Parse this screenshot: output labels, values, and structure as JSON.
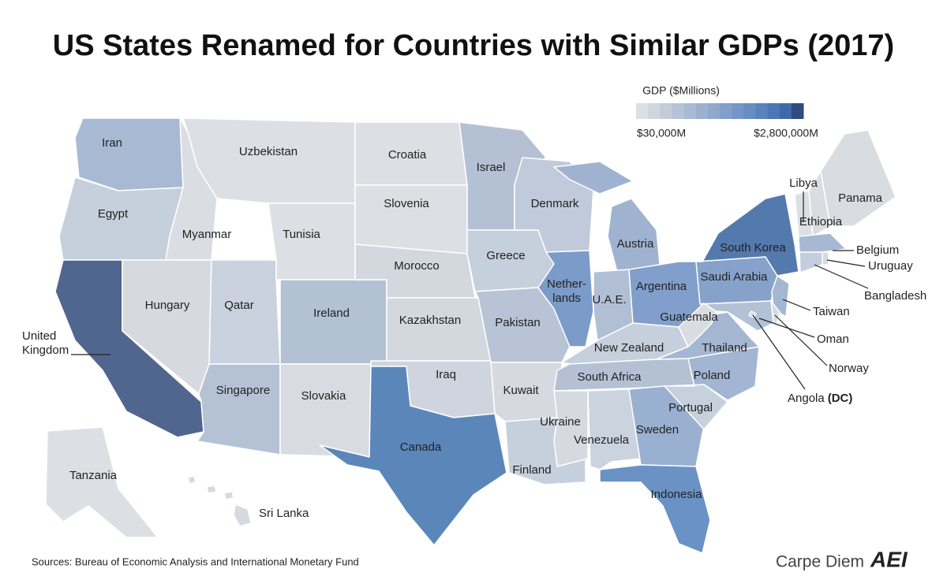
{
  "title": "US States Renamed for Countries with Similar GDPs (2017)",
  "legend": {
    "title": "GDP ($Millions)",
    "min_label": "$30,000M",
    "max_label": "$2,800,000M",
    "colors": [
      "#dcdfe3",
      "#d0d6de",
      "#c3ccd9",
      "#b6c3d6",
      "#a9bad3",
      "#9cb1d0",
      "#8fa8cd",
      "#829fca",
      "#7596c6",
      "#678cc2",
      "#5a82bd",
      "#4c76b4",
      "#3f69a8",
      "#2f4c80"
    ]
  },
  "states": [
    {
      "label": [
        "Iran"
      ],
      "color": "#a8bad3"
    },
    {
      "label": [
        "Egypt"
      ],
      "color": "#c6d0dd"
    },
    {
      "label": [
        "United",
        "Kingdom"
      ],
      "color": "#51668e"
    },
    {
      "label": [
        "Uzbekistan"
      ],
      "color": "#dcdfe3"
    },
    {
      "label": [
        "Myanmar"
      ],
      "color": "#dadde2"
    },
    {
      "label": [
        "Hungary"
      ],
      "color": "#d6dae0"
    },
    {
      "label": [
        "Qatar"
      ],
      "color": "#c9d2de"
    },
    {
      "label": [
        "Tunisia"
      ],
      "color": "#dcdfe3"
    },
    {
      "label": [
        "Ireland"
      ],
      "color": "#b3c1d5"
    },
    {
      "label": [
        "Singapore"
      ],
      "color": "#b5c2d6"
    },
    {
      "label": [
        "Slovakia"
      ],
      "color": "#d8dce2"
    },
    {
      "label": [
        "Croatia"
      ],
      "color": "#dcdfe3"
    },
    {
      "label": [
        "Slovenia"
      ],
      "color": "#dcdfe3"
    },
    {
      "label": [
        "Morocco"
      ],
      "color": "#d3d8df"
    },
    {
      "label": [
        "Kazakhstan"
      ],
      "color": "#d3d8df"
    },
    {
      "label": [
        "Iraq"
      ],
      "color": "#cfd5de"
    },
    {
      "label": [
        "Canada"
      ],
      "color": "#5b86ba"
    },
    {
      "label": [
        "Israel"
      ],
      "color": "#b4c1d5"
    },
    {
      "label": [
        "Greece"
      ],
      "color": "#c6cfdc"
    },
    {
      "label": [
        "Pakistan"
      ],
      "color": "#b8c4d6"
    },
    {
      "label": [
        "Kuwait"
      ],
      "color": "#d6dae0"
    },
    {
      "label": [
        "Finland"
      ],
      "color": "#c6cfdc"
    },
    {
      "label": [
        "Denmark"
      ],
      "color": "#c0cadb"
    },
    {
      "label": [
        "Nether-",
        "lands"
      ],
      "color": "#7b9cc8"
    },
    {
      "label": [
        "Austria"
      ],
      "color": "#9fb3d1"
    },
    {
      "label": [
        "U.A.E."
      ],
      "color": "#b1bfd5"
    },
    {
      "label": [
        "Argentina"
      ],
      "color": "#819fca"
    },
    {
      "label": [
        "New Zealand"
      ],
      "color": "#c6cfdc"
    },
    {
      "label": [
        "South Africa"
      ],
      "color": "#b4c1d5"
    },
    {
      "label": [
        "Ukraine"
      ],
      "color": "#d6dae0"
    },
    {
      "label": [
        "Venezuela"
      ],
      "color": "#cbd3de"
    },
    {
      "label": [
        "Sweden"
      ],
      "color": "#9ab0d0"
    },
    {
      "label": [
        "Indonesia"
      ],
      "color": "#6a92c5"
    },
    {
      "label": [
        "Portugal"
      ],
      "color": "#c7d0dd"
    },
    {
      "label": [
        "Poland"
      ],
      "color": "#a2b5d2"
    },
    {
      "label": [
        "Thailand"
      ],
      "color": "#a4b6d2"
    },
    {
      "label": [
        "Guatemala"
      ],
      "color": "#d9dde2"
    },
    {
      "label": [
        "Saudi Arabia"
      ],
      "color": "#86a2cb"
    },
    {
      "label": [
        "South Korea"
      ],
      "color": "#5479ad"
    },
    {
      "label": [
        "Taiwan"
      ],
      "color": "#a3b6d2"
    },
    {
      "label": [
        "Oman"
      ],
      "color": "#b3c1d5"
    },
    {
      "label": [
        "Norway"
      ],
      "color": "#d8dce2"
    },
    {
      "label": [
        "Angola"
      ],
      "note": "(DC)",
      "color": "#d3d8df"
    },
    {
      "label": [
        "Libya"
      ],
      "color": "#dcdfe3"
    },
    {
      "label": [
        "Ethiopia"
      ],
      "color": "#d9dde2"
    },
    {
      "label": [
        "Panama"
      ],
      "color": "#d9dde2"
    },
    {
      "label": [
        "Belgium"
      ],
      "color": "#a6b8d2"
    },
    {
      "label": [
        "Uruguay"
      ],
      "color": "#d6dae0"
    },
    {
      "label": [
        "Bangladesh"
      ],
      "color": "#c4cedc"
    },
    {
      "label": [
        "Tanzania"
      ],
      "color": "#dcdfe3"
    },
    {
      "label": [
        "Sri Lanka"
      ],
      "color": "#d6dae0"
    }
  ],
  "sources": "Sources: Bureau of Economic Analysis and International Monetary Fund",
  "brand": "Carpe Diem",
  "logo": "AEI"
}
